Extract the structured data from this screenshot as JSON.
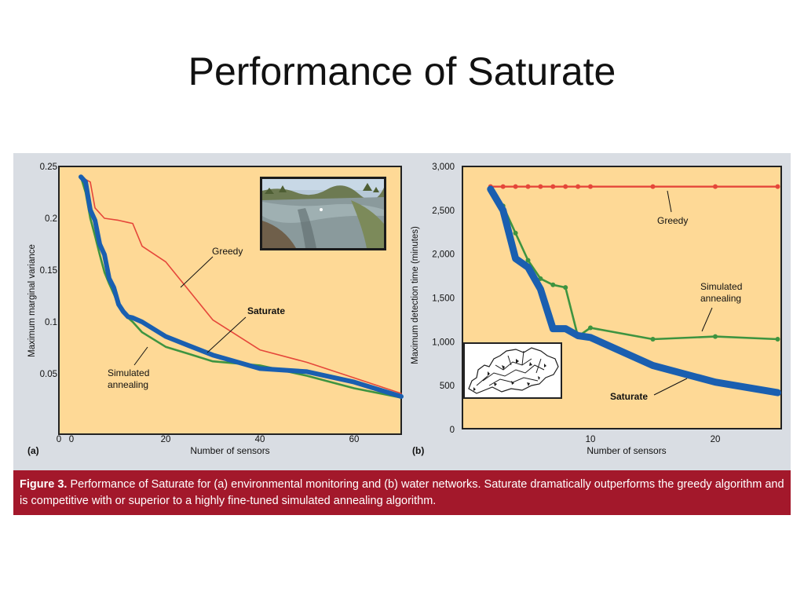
{
  "slide": {
    "title": "Performance of Saturate"
  },
  "caption": {
    "label": "Figure 3.",
    "text": "Performance of Saturate for (a) environmental monitoring and (b) water networks. Saturate dramatically outperforms the greedy algorithm and is competitive with or superior to a highly fine-tuned simulated annealing algorithm."
  },
  "colors": {
    "panel_bg": "#fed996",
    "outer_bg": "#d9dde3",
    "greedy": "#e5473a",
    "annealing": "#3e9440",
    "saturate": "#1a5fb0",
    "caption_bg": "#a3182b"
  },
  "chart_data": [
    {
      "type": "line",
      "panel_label": "(a)",
      "xlabel": "Number of sensors",
      "ylabel": "Maximum marginal variance",
      "xlim": [
        0,
        70
      ],
      "ylim": [
        0,
        0.25
      ],
      "x_ticks": [
        "0",
        "20",
        "40",
        "60"
      ],
      "y_ticks": [
        "0.05",
        "0.1",
        "0.15",
        "0.2",
        "0.25"
      ],
      "annotations": [
        "Greedy",
        "Saturate",
        "Simulated annealing"
      ],
      "inset": "photo of a river",
      "series": [
        {
          "name": "Greedy",
          "color": "#e5473a",
          "x": [
            2,
            4,
            5,
            7,
            10,
            12,
            13,
            15,
            20,
            25,
            30,
            40,
            50,
            60,
            70
          ],
          "y": [
            0.24,
            0.235,
            0.21,
            0.2,
            0.198,
            0.196,
            0.195,
            0.173,
            0.158,
            0.13,
            0.102,
            0.073,
            0.061,
            0.046,
            0.031
          ]
        },
        {
          "name": "Simulated annealing",
          "color": "#3e9440",
          "x": [
            2,
            3,
            4,
            5,
            6,
            7,
            8,
            9,
            10,
            11,
            12,
            13,
            15,
            20,
            25,
            30,
            40,
            50,
            60,
            70
          ],
          "y": [
            0.24,
            0.225,
            0.2,
            0.183,
            0.165,
            0.148,
            0.137,
            0.127,
            0.116,
            0.11,
            0.104,
            0.1,
            0.09,
            0.076,
            0.069,
            0.062,
            0.058,
            0.048,
            0.036,
            0.027
          ]
        },
        {
          "name": "Saturate",
          "color": "#1a5fb0",
          "x": [
            2,
            3,
            4,
            5,
            6,
            7,
            8,
            9,
            10,
            11,
            12,
            13,
            15,
            20,
            25,
            30,
            40,
            50,
            60,
            70
          ],
          "y": [
            0.24,
            0.235,
            0.208,
            0.198,
            0.175,
            0.165,
            0.142,
            0.133,
            0.117,
            0.11,
            0.105,
            0.104,
            0.1,
            0.086,
            0.077,
            0.068,
            0.055,
            0.052,
            0.042,
            0.028
          ]
        }
      ]
    },
    {
      "type": "line",
      "panel_label": "(b)",
      "xlabel": "Number of sensors",
      "ylabel": "Maximum detection time (minutes)",
      "xlim": [
        0,
        26
      ],
      "ylim": [
        0,
        3000
      ],
      "x_ticks": [
        "10",
        "20"
      ],
      "y_ticks": [
        "0",
        "500",
        "1,000",
        "1,500",
        "2,000",
        "2,500",
        "3,000"
      ],
      "annotations": [
        "Greedy",
        "Simulated annealing",
        "Saturate"
      ],
      "inset": "water network map",
      "series": [
        {
          "name": "Greedy",
          "color": "#e5473a",
          "x": [
            2,
            3,
            4,
            5,
            6,
            7,
            8,
            9,
            10,
            15,
            20,
            25
          ],
          "y": [
            2770,
            2770,
            2770,
            2770,
            2770,
            2770,
            2770,
            2770,
            2770,
            2770,
            2770,
            2770
          ]
        },
        {
          "name": "Simulated annealing",
          "color": "#3e9440",
          "x": [
            2,
            3,
            4,
            5,
            6,
            7,
            8,
            9,
            10,
            15,
            20,
            25
          ],
          "y": [
            2740,
            2550,
            2240,
            1930,
            1720,
            1650,
            1620,
            1060,
            1160,
            1030,
            1060,
            1030
          ]
        },
        {
          "name": "Saturate",
          "color": "#1a5fb0",
          "x": [
            2,
            3,
            4,
            5,
            6,
            7,
            8,
            9,
            10,
            15,
            20,
            25
          ],
          "y": [
            2740,
            2500,
            1950,
            1850,
            1600,
            1150,
            1150,
            1070,
            1050,
            730,
            540,
            420
          ]
        }
      ]
    }
  ]
}
